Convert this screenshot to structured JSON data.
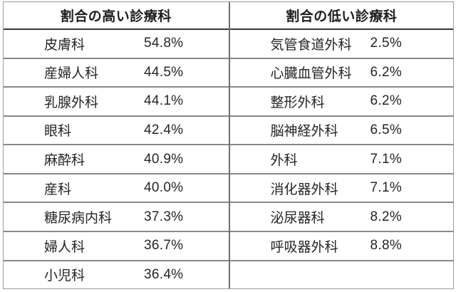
{
  "chart_data": {
    "type": "table",
    "title": "",
    "left": {
      "header": "割合の高い診療科",
      "rows": [
        {
          "name": "皮膚科",
          "value": "54.8%"
        },
        {
          "name": "産婦人科",
          "value": "44.5%"
        },
        {
          "name": "乳腺外科",
          "value": "44.1%"
        },
        {
          "name": "眼科",
          "value": "42.4%"
        },
        {
          "name": "麻酔科",
          "value": "40.9%"
        },
        {
          "name": "産科",
          "value": "40.0%"
        },
        {
          "name": "糖尿病内科",
          "value": "37.3%"
        },
        {
          "name": "婦人科",
          "value": "36.7%"
        },
        {
          "name": "小児科",
          "value": "36.4%"
        }
      ]
    },
    "right": {
      "header": "割合の低い診療科",
      "rows": [
        {
          "name": "気管食道外科",
          "value": "2.5%"
        },
        {
          "name": "心臓血管外科",
          "value": "6.2%"
        },
        {
          "name": "整形外科",
          "value": "6.2%"
        },
        {
          "name": "脳神経外科",
          "value": "6.5%"
        },
        {
          "name": "外科",
          "value": "7.1%"
        },
        {
          "name": "消化器外科",
          "value": "7.1%"
        },
        {
          "name": "泌尿器科",
          "value": "8.2%"
        },
        {
          "name": "呼吸器外科",
          "value": "8.8%"
        },
        {
          "name": "",
          "value": ""
        }
      ]
    },
    "layout": {
      "columns": 2,
      "rows_per_column": 9,
      "grid": "on"
    }
  },
  "colors": {
    "background": "#ffffff",
    "text": "#252525",
    "header_text": "#1d1d1d",
    "header_rule": "#3a3a3a",
    "row_rule": "#898989",
    "column_divider": "#6f6f6f",
    "outer_frame": "#9a9a9a"
  }
}
